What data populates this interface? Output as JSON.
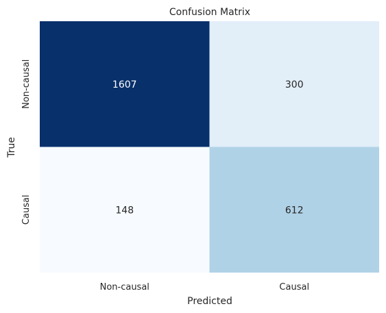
{
  "chart_data": {
    "type": "heatmap",
    "title": "Confusion Matrix",
    "xlabel": "Predicted",
    "ylabel": "True",
    "x_categories": [
      "Non-causal",
      "Causal"
    ],
    "y_categories": [
      "Non-causal",
      "Causal"
    ],
    "values": [
      [
        1607,
        300
      ],
      [
        148,
        612
      ]
    ],
    "colormap": "Blues",
    "colorbar": false,
    "grid": false,
    "colors": {
      "min": "#f7fbff",
      "max": "#08306b",
      "dark_text": "#262626",
      "light_text": "#ffffff"
    }
  }
}
